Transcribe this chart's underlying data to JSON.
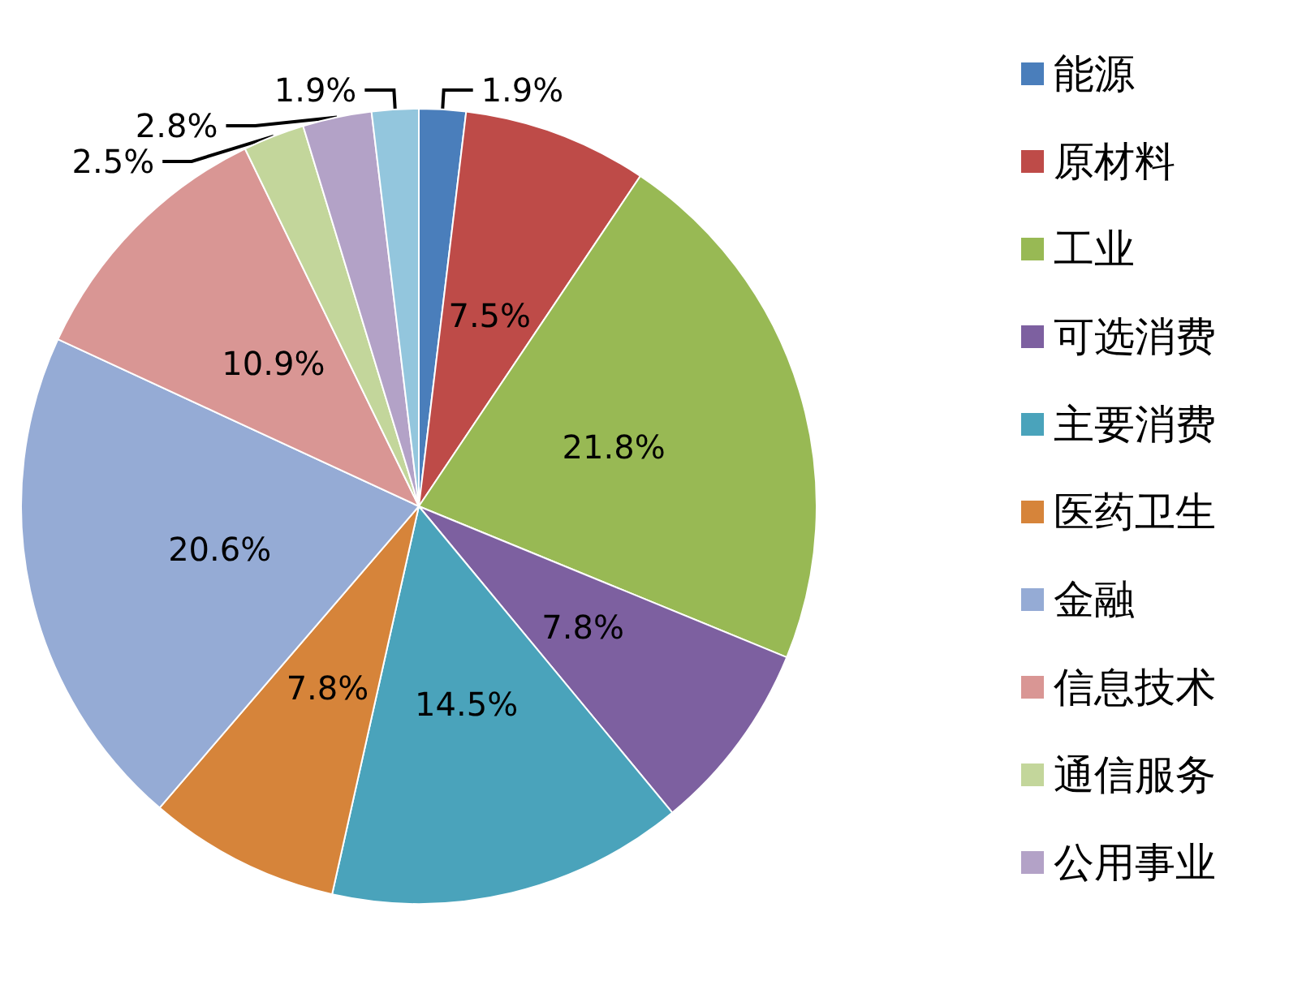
{
  "chart_data": {
    "type": "pie",
    "categories": [
      "能源",
      "原材料",
      "工业",
      "可选消费",
      "主要消费",
      "医药卫生",
      "金融",
      "信息技术",
      "通信服务",
      "公用事业",
      null
    ],
    "values": [
      1.9,
      7.5,
      21.8,
      7.8,
      14.5,
      7.8,
      20.6,
      10.9,
      2.5,
      2.8,
      1.9
    ],
    "colors": [
      "#4a7ebb",
      "#be4b48",
      "#98b954",
      "#7d60a0",
      "#4aa3bb",
      "#d6843a",
      "#95abd5",
      "#d99694",
      "#c3d69b",
      "#b3a2c7",
      "#93c6dd"
    ],
    "value_labels": [
      "1.9%",
      "7.5%",
      "21.8%",
      "7.8%",
      "14.5%",
      "7.8%",
      "20.6%",
      "10.9%",
      "2.5%",
      "2.8%",
      "1.9%"
    ],
    "legend": "right"
  }
}
